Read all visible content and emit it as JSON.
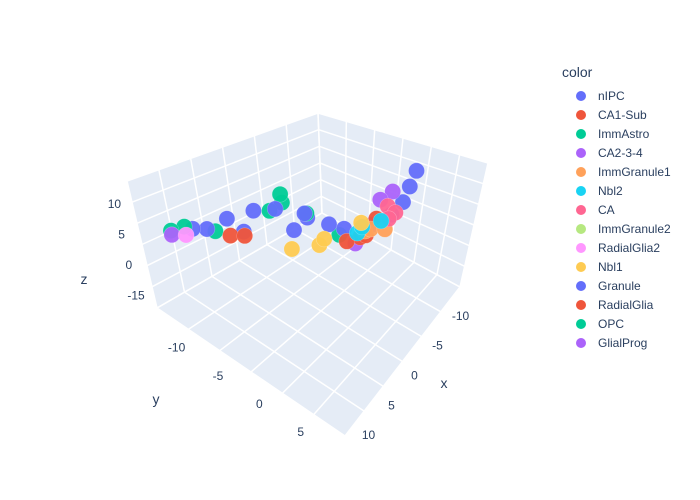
{
  "chart_data": {
    "type": "scatter3d",
    "legend": {
      "title": "color",
      "placement": "right",
      "entries": [
        {
          "name": "nIPC",
          "color": "#636efa"
        },
        {
          "name": "CA1-Sub",
          "color": "#EF553B"
        },
        {
          "name": "ImmAstro",
          "color": "#00cc96"
        },
        {
          "name": "CA2-3-4",
          "color": "#ab63fa"
        },
        {
          "name": "ImmGranule1",
          "color": "#FFA15A"
        },
        {
          "name": "Nbl2",
          "color": "#19d3f3"
        },
        {
          "name": "CA",
          "color": "#FF6692"
        },
        {
          "name": "ImmGranule2",
          "color": "#B6E880"
        },
        {
          "name": "RadialGlia2",
          "color": "#FF97FF"
        },
        {
          "name": "Nbl1",
          "color": "#FECB52"
        },
        {
          "name": "Granule",
          "color": "#636efa"
        },
        {
          "name": "RadialGlia",
          "color": "#EF553B"
        },
        {
          "name": "OPC",
          "color": "#00cc96"
        },
        {
          "name": "GlialProg",
          "color": "#ab63fa"
        }
      ]
    },
    "axes": {
      "x": {
        "label": "x",
        "ticks": [
          "-10",
          "-5",
          "0",
          "5",
          "10"
        ]
      },
      "y": {
        "label": "y",
        "ticks": [
          "-10",
          "-5",
          "0",
          "5"
        ]
      },
      "z": {
        "label": "z",
        "ticks": [
          "-15",
          "0",
          "5",
          "10"
        ]
      }
    },
    "grid": true,
    "series": [
      {
        "name": "Granule",
        "color": "#636efa",
        "points": [
          [
            -9,
            8,
            14
          ],
          [
            -8,
            7.5,
            11
          ],
          [
            -7,
            7,
            8
          ],
          [
            -6,
            6,
            5
          ],
          [
            -3,
            2,
            0
          ],
          [
            0,
            -2,
            -2
          ],
          [
            3,
            -6,
            -4
          ],
          [
            5,
            -9,
            -5
          ],
          [
            2,
            -5,
            1
          ],
          [
            -1,
            -1,
            2
          ],
          [
            1,
            -3,
            3
          ],
          [
            -2,
            1,
            1
          ],
          [
            4,
            -7,
            -1
          ],
          [
            6,
            -10,
            -5
          ],
          [
            0,
            0,
            4
          ]
        ]
      },
      {
        "name": "OPC",
        "color": "#00cc96",
        "points": [
          [
            1,
            -2,
            6
          ],
          [
            1,
            -2,
            8
          ],
          [
            2,
            -3,
            4
          ],
          [
            6,
            -11,
            -6
          ],
          [
            7,
            -12,
            -7
          ],
          [
            0,
            0,
            5
          ],
          [
            -2,
            2,
            0
          ],
          [
            5,
            -8,
            -4
          ]
        ]
      },
      {
        "name": "CA2-3-4",
        "color": "#ab63fa",
        "points": [
          [
            -7,
            6,
            9
          ],
          [
            -6,
            5,
            7
          ],
          [
            -5,
            4,
            1
          ],
          [
            -3,
            3,
            -2
          ],
          [
            7,
            -12,
            -8
          ]
        ]
      },
      {
        "name": "CA1-Sub",
        "color": "#EF553B",
        "points": [
          [
            -4,
            3,
            -2
          ],
          [
            -3,
            2,
            -3
          ],
          [
            -6,
            4,
            1
          ],
          [
            4,
            -7,
            -5
          ],
          [
            3,
            -6,
            -5
          ],
          [
            -5,
            3,
            -3
          ]
        ]
      },
      {
        "name": "ImmGranule1",
        "color": "#FFA15A",
        "points": [
          [
            -5,
            3,
            -2
          ],
          [
            -6,
            3,
            -3
          ],
          [
            -7,
            4,
            -3
          ]
        ]
      },
      {
        "name": "Nbl2",
        "color": "#19d3f3",
        "points": [
          [
            -5,
            2,
            -4
          ],
          [
            -6,
            2,
            -4
          ],
          [
            -8,
            3,
            -4
          ]
        ]
      },
      {
        "name": "CA",
        "color": "#FF6692",
        "points": [
          [
            -7,
            5,
            4
          ],
          [
            -8,
            5,
            1
          ],
          [
            -8,
            4,
            -2
          ]
        ]
      },
      {
        "name": "Nbl1",
        "color": "#FECB52",
        "points": [
          [
            -1,
            0,
            -4
          ],
          [
            1,
            -2,
            -5
          ],
          [
            -2,
            0,
            -4
          ],
          [
            -6,
            2,
            -3
          ]
        ]
      },
      {
        "name": "RadialGlia2",
        "color": "#FF97FF",
        "points": [
          [
            6,
            -11,
            -8
          ]
        ]
      }
    ]
  }
}
